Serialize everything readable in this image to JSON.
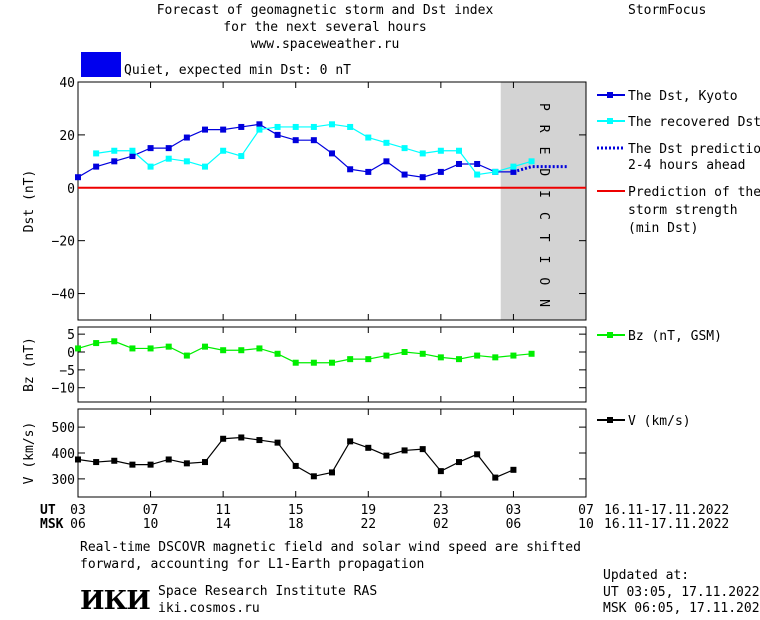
{
  "header": {
    "title_line1": "Forecast of geomagnetic storm and Dst index",
    "title_line2": "for the next several hours",
    "title_line3": "www.spaceweather.ru",
    "brand": "StormFocus",
    "status_label": "Quiet, expected min Dst: 0 nT",
    "status_color": "#0000ee"
  },
  "footer": {
    "note_line1": "Real-time DSCOVR magnetic field and solar wind speed are shifted",
    "note_line2": "forward, accounting for L1-Earth propagation",
    "org_name": "Space Research Institute RAS",
    "org_url": "iki.cosmos.ru",
    "logo_text": "ИКИ",
    "updated_label": "Updated at:",
    "updated_ut": "UT   03:05, 17.11.2022",
    "updated_msk": "MSK 06:05, 17.11.2022"
  },
  "time_axis": {
    "ut_label": "UT",
    "msk_label": "MSK",
    "ut_ticks": [
      "03",
      "07",
      "11",
      "15",
      "19",
      "23",
      "03",
      "07"
    ],
    "msk_ticks": [
      "06",
      "10",
      "14",
      "18",
      "22",
      "02",
      "06",
      "10"
    ],
    "ut_range": "16.11-17.11.2022",
    "msk_range": "16.11-17.11.2022",
    "tick_hours": [
      0,
      4,
      8,
      12,
      16,
      20,
      24,
      28
    ]
  },
  "chart_data": [
    {
      "type": "line",
      "panel": "dst",
      "ylabel": "Dst (nT)",
      "ylim": [
        -50,
        40
      ],
      "yticks": [
        -40,
        -20,
        0,
        20,
        40
      ],
      "x_range_hours": [
        0,
        28
      ],
      "prediction_band_hours": [
        23.3,
        28
      ],
      "prediction_text": "PREDICTION",
      "strength_line_value": 0,
      "series": [
        {
          "name": "The Dst, Kyoto",
          "color": "#0000dd",
          "x": [
            0,
            1,
            2,
            3,
            4,
            5,
            6,
            7,
            8,
            9,
            10,
            11,
            12,
            13,
            14,
            15,
            16,
            17,
            18,
            19,
            20,
            21,
            22,
            23,
            24
          ],
          "values": [
            4,
            8,
            10,
            12,
            15,
            15,
            19,
            22,
            22,
            23,
            24,
            20,
            18,
            18,
            13,
            7,
            6,
            10,
            5,
            4,
            6,
            9,
            9,
            6,
            6
          ]
        },
        {
          "name": "The recovered Dst",
          "color": "#00ffff",
          "x": [
            1,
            2,
            3,
            4,
            5,
            6,
            7,
            8,
            9,
            10,
            11,
            12,
            13,
            14,
            15,
            16,
            17,
            18,
            19,
            20,
            21,
            22,
            23,
            24,
            25
          ],
          "values": [
            13,
            14,
            14,
            8,
            11,
            10,
            8,
            14,
            12,
            22,
            23,
            23,
            23,
            24,
            23,
            19,
            17,
            15,
            13,
            14,
            14,
            5,
            6,
            8,
            10
          ]
        },
        {
          "name": "The Dst prediction",
          "name_line2": "2-4 hours ahead",
          "color": "#0000dd",
          "x": [
            24,
            24.5,
            25,
            25.5,
            26,
            26.5,
            27
          ],
          "values": [
            6,
            7,
            8,
            8,
            8,
            8,
            8
          ]
        }
      ],
      "strength_legend": {
        "line1": "Prediction of the",
        "line2": "storm strength",
        "line3": "(min Dst)",
        "color": "#ee0000"
      }
    },
    {
      "type": "line",
      "panel": "bz",
      "ylabel": "Bz (nT)",
      "ylim": [
        -14,
        7
      ],
      "yticks": [
        -10,
        -5,
        0,
        5
      ],
      "series": [
        {
          "name": "Bz (nT, GSM)",
          "color": "#00ee00",
          "x": [
            0,
            1,
            2,
            3,
            4,
            5,
            6,
            7,
            8,
            9,
            10,
            11,
            12,
            13,
            14,
            15,
            16,
            17,
            18,
            19,
            20,
            21,
            22,
            23,
            24,
            25
          ],
          "values": [
            1,
            2.5,
            3,
            1,
            1,
            1.5,
            -1,
            1.5,
            0.5,
            0.5,
            1,
            -0.5,
            -3,
            -3,
            -3,
            -2,
            -2,
            -1,
            0,
            -0.5,
            -1.5,
            -2,
            -1,
            -1.5,
            -1,
            -0.5
          ]
        }
      ]
    },
    {
      "type": "line",
      "panel": "v",
      "ylabel": "V (km/s)",
      "ylim": [
        230,
        570
      ],
      "yticks": [
        300,
        400,
        500
      ],
      "series": [
        {
          "name": "V (km/s)",
          "color": "#000000",
          "x": [
            0,
            1,
            2,
            3,
            4,
            5,
            6,
            7,
            8,
            9,
            10,
            11,
            12,
            13,
            14,
            15,
            16,
            17,
            18,
            19,
            20,
            21,
            22,
            23,
            24,
            25
          ],
          "values": [
            375,
            365,
            370,
            355,
            355,
            375,
            360,
            365,
            455,
            460,
            450,
            440,
            350,
            310,
            325,
            445,
            420,
            390,
            410,
            415,
            330,
            365,
            395,
            305,
            335,
            null
          ]
        }
      ]
    }
  ]
}
